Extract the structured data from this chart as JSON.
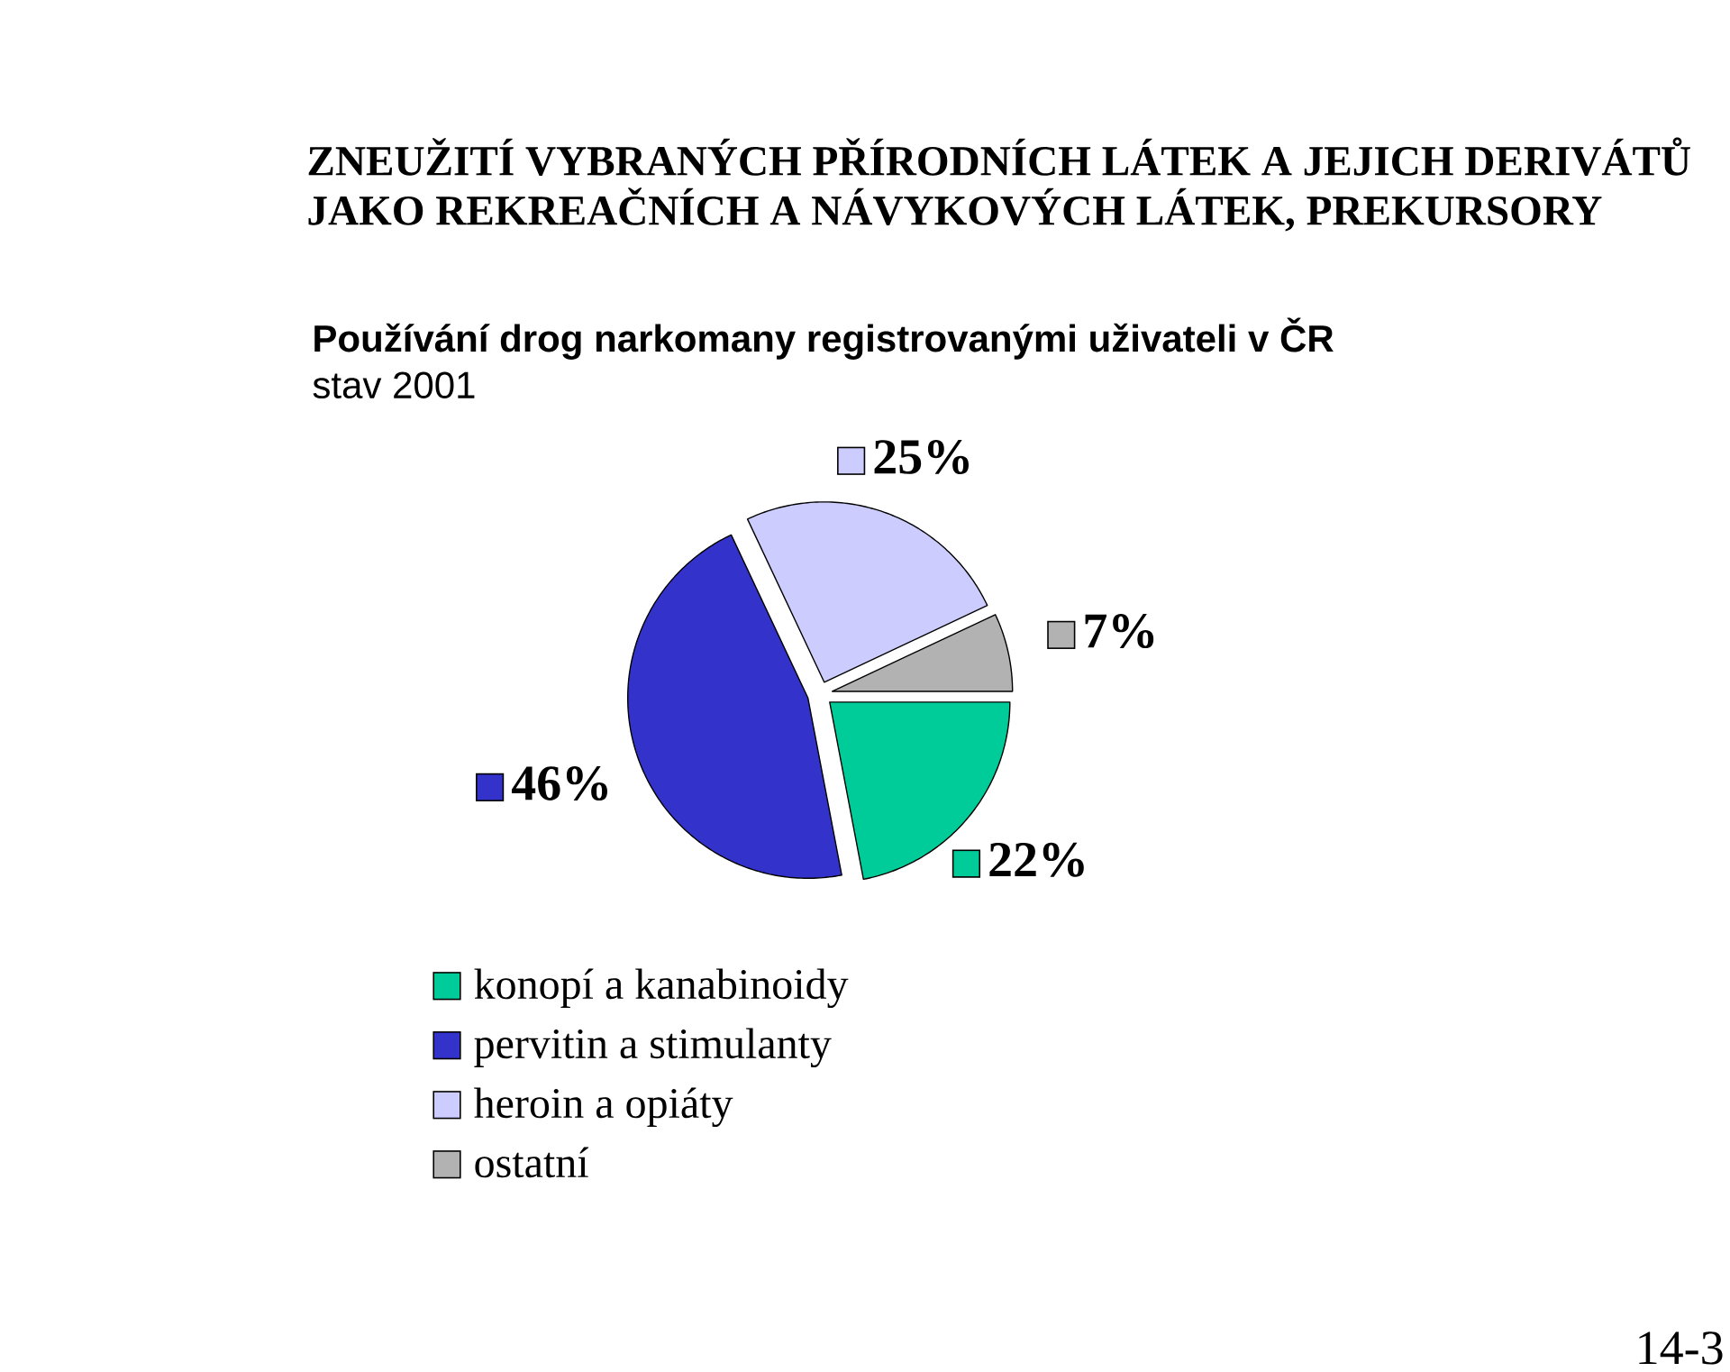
{
  "chart_data": {
    "type": "pie",
    "title": "ZNEUŽITÍ VYBRANÝCH PŘÍRODNÍCH LÁTEK A JEJICH DERIVÁTŮ JAKO REKREAČNÍCH A NÁVYKOVÝCH LÁTEK, PREKURSORY",
    "subtitle": "Používání drog narkomany registrovanými uživateli v ČR",
    "annotations": [
      "stav 2001",
      "14-3"
    ],
    "categories": [
      "konopí a kanabinoidy",
      "pervitin a stimulanty",
      "heroin a opiáty",
      "ostatní"
    ],
    "values": [
      22,
      46,
      25,
      7
    ],
    "colors": [
      "#00cc99",
      "#3333cc",
      "#ccccff",
      "#b2b2b2"
    ],
    "value_labels": [
      "22%",
      "46%",
      "25%",
      "7%"
    ],
    "legend": "bottom"
  }
}
